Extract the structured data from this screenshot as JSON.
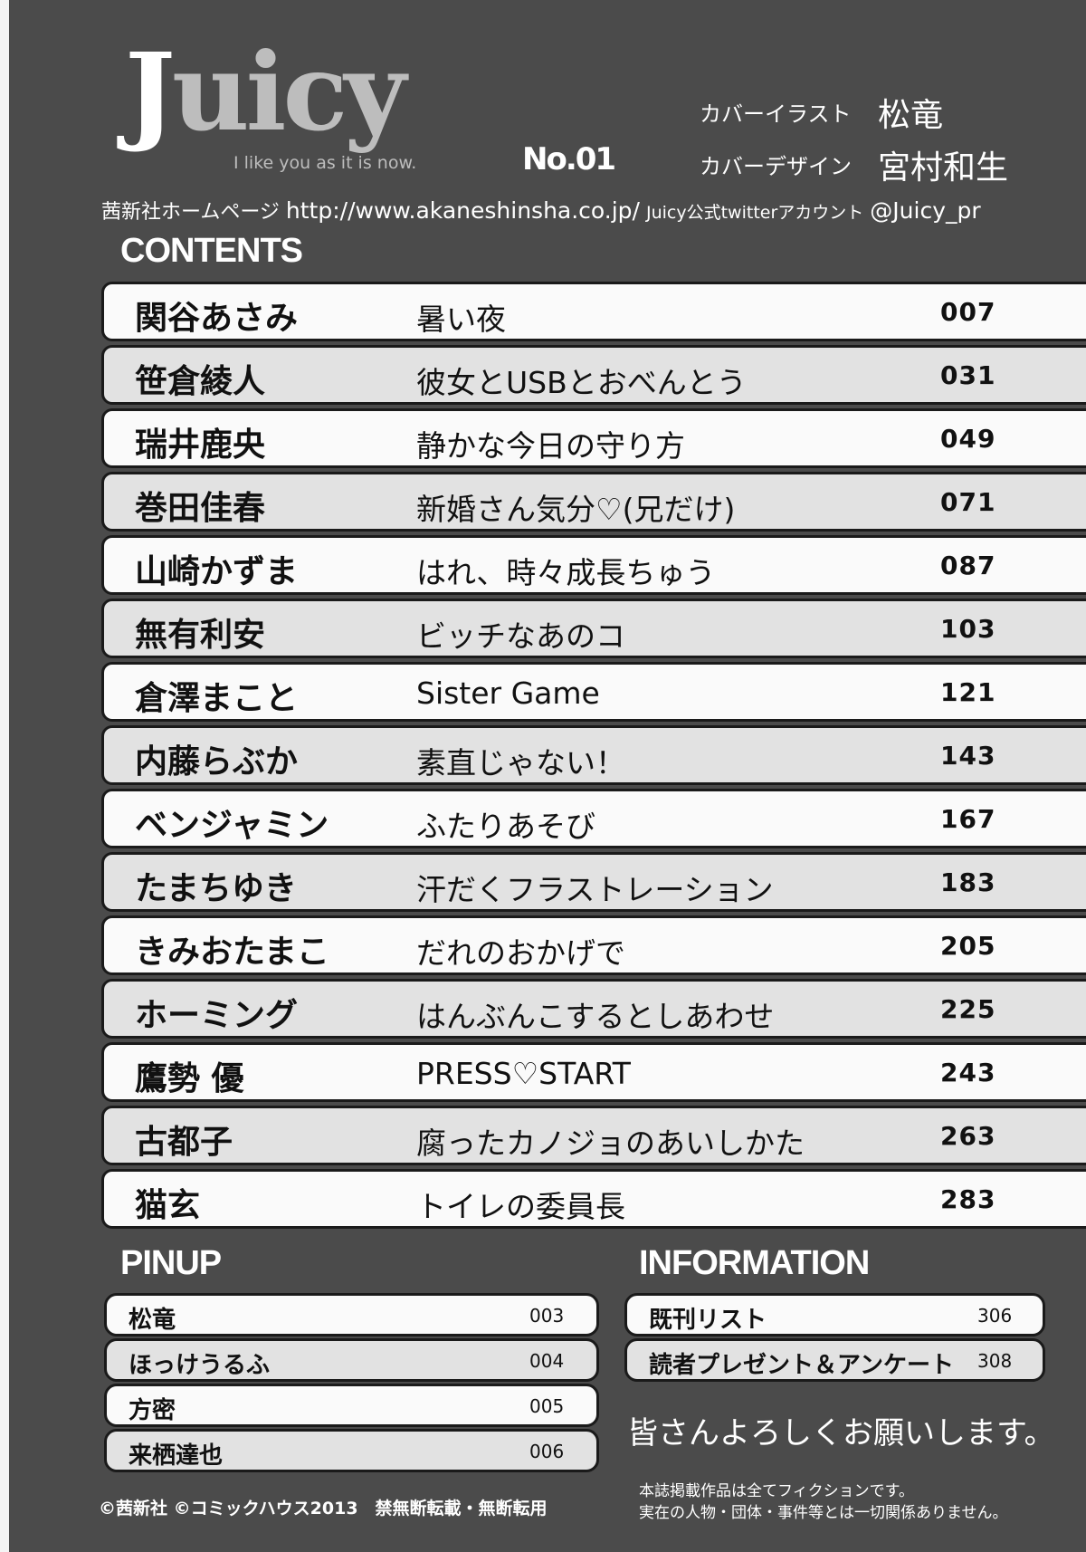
{
  "header": {
    "logo_j": "J",
    "logo_rest": "uicy",
    "logo_text": "Juicy",
    "tagline": "I like you as it is now.",
    "issue": "No.01",
    "cover_illust_label": "カバーイラスト",
    "cover_illust_name": "松竜",
    "cover_design_label": "カバーデザイン",
    "cover_design_name": "宮村和生",
    "homepage_label": "茜新社ホームページ",
    "homepage_url": "http://www.akaneshinsha.co.jp/",
    "twitter_label": "Juicy公式twitterアカウント",
    "twitter_handle": "@Juicy_pr"
  },
  "contents": {
    "heading": "CONTENTS",
    "rows": [
      {
        "author": "関谷あさみ",
        "title": "暑い夜",
        "page": "007"
      },
      {
        "author": "笹倉綾人",
        "title": "彼女とUSBとおべんとう",
        "page": "031"
      },
      {
        "author": "瑞井鹿央",
        "title": "静かな今日の守り方",
        "page": "049"
      },
      {
        "author": "巻田佳春",
        "title": "新婚さん気分♡(兄だけ)",
        "page": "071"
      },
      {
        "author": "山崎かずま",
        "title": "はれ、時々成長ちゅう",
        "page": "087"
      },
      {
        "author": "無有利安",
        "title": "ビッチなあのコ",
        "page": "103"
      },
      {
        "author": "倉澤まこと",
        "title": "Sister Game",
        "page": "121"
      },
      {
        "author": "内藤らぶか",
        "title": "素直じゃない！",
        "page": "143"
      },
      {
        "author": "ベンジャミン",
        "title": "ふたりあそび",
        "page": "167"
      },
      {
        "author": "たまちゆき",
        "title": "汗だくフラストレーション",
        "page": "183"
      },
      {
        "author": "きみおたまこ",
        "title": "だれのおかげで",
        "page": "205"
      },
      {
        "author": "ホーミング",
        "title": "はんぶんこするとしあわせ",
        "page": "225"
      },
      {
        "author": "鷹勢 優",
        "title": "PRESS♡START",
        "page": "243"
      },
      {
        "author": "古都子",
        "title": "腐ったカノジョのあいしかた",
        "page": "263"
      },
      {
        "author": "猫玄",
        "title": "トイレの委員長",
        "page": "283"
      }
    ]
  },
  "pinup": {
    "heading": "PINUP",
    "items": [
      {
        "name": "松竜",
        "page": "003"
      },
      {
        "name": "ほっけうるふ",
        "page": "004"
      },
      {
        "name": "方密",
        "page": "005"
      },
      {
        "name": "来栖達也",
        "page": "006"
      }
    ]
  },
  "information": {
    "heading": "INFORMATION",
    "items": [
      {
        "name": "既刊リスト",
        "page": "306"
      },
      {
        "name": "読者プレゼント＆アンケート",
        "page": "308"
      }
    ],
    "greeting": "皆さんよろしくお願いします。"
  },
  "footer": {
    "copyright": "©茜新社 ©コミックハウス2013　禁無断転載・無断転用",
    "disclaimer_1": "本誌掲載作品は全てフィクションです。",
    "disclaimer_2": "実在の人物・団体・事件等とは一切関係ありません。"
  },
  "colors": {
    "background": "#4b4b4b",
    "row_white": "#fafafa",
    "row_gray": "#e2e2e2",
    "logo_gray": "#bdbdbd"
  }
}
